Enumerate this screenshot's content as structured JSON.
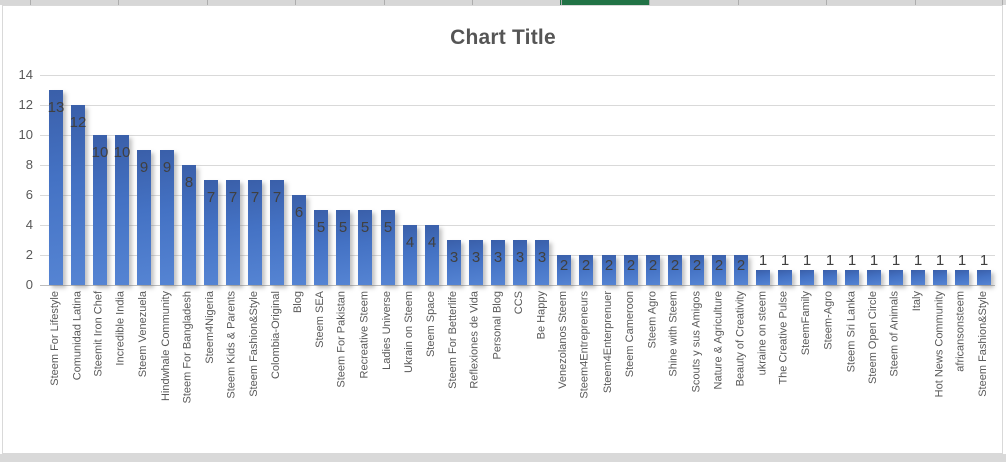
{
  "window": {
    "selection_color": "#217346",
    "sheet_chrome_color": "#d7d7d7"
  },
  "chart_data": {
    "type": "bar",
    "title": "Chart Title",
    "categories": [
      "Steem For Lifestyle",
      "Comunidad Latina",
      "Steemit Iron Chef",
      "Incredible India",
      "Steem Venezuela",
      "Hindwhale Community",
      "Steem For Bangladesh",
      "Steem4Nigeria",
      "Steem Kids & Parents",
      "Steem Fashion&Style",
      "Colombia-Original",
      "Blog",
      "Steem SEA",
      "Steem For Pakistan",
      "Recreative Steem",
      "Ladies Universe",
      "Ukrain on Steem",
      "Steem Space",
      "Steem For Betterlife",
      "Reflexiones de Vida",
      "Personal Blog",
      "CCS",
      "Be Happy",
      "Venezolanos Steem",
      "Steem4Entrepreneurs",
      "Steem4Enterprenuer",
      "Steem Cameroon",
      "Steem Agro",
      "Shine with Steem",
      "Scouts y sus Amigos",
      "Nature & Agriculture",
      "Beauty of Creativity",
      "ukraine on steem",
      "The Creative Pulse",
      "SteemFamily",
      "Steem-Agro",
      "Steem Sri Lanka",
      "Steem Open Circle",
      "Steem of Animals",
      "Italy",
      "Hot News Community",
      "africansonsteem",
      "Steem Fashion&Style"
    ],
    "values": [
      13,
      12,
      10,
      10,
      9,
      9,
      8,
      7,
      7,
      7,
      7,
      6,
      5,
      5,
      5,
      5,
      4,
      4,
      3,
      3,
      3,
      3,
      3,
      2,
      2,
      2,
      2,
      2,
      2,
      2,
      2,
      2,
      1,
      1,
      1,
      1,
      1,
      1,
      1,
      1,
      1,
      1,
      1
    ],
    "xlabel": "",
    "ylabel": "",
    "ylim": [
      0,
      14
    ],
    "yticks": [
      0,
      2,
      4,
      6,
      8,
      10,
      12,
      14
    ],
    "grid": true,
    "legend": false,
    "data_labels": true,
    "bar_color": "#4472c4",
    "bar_gradient_top": "#3a5fa9",
    "bar_gradient_bottom": "#5584d3",
    "value_label_color": "#404040",
    "axis_text_color": "#595959",
    "gridline_color": "#d9d9d9",
    "axis_line_color": "#bcbcbc"
  }
}
